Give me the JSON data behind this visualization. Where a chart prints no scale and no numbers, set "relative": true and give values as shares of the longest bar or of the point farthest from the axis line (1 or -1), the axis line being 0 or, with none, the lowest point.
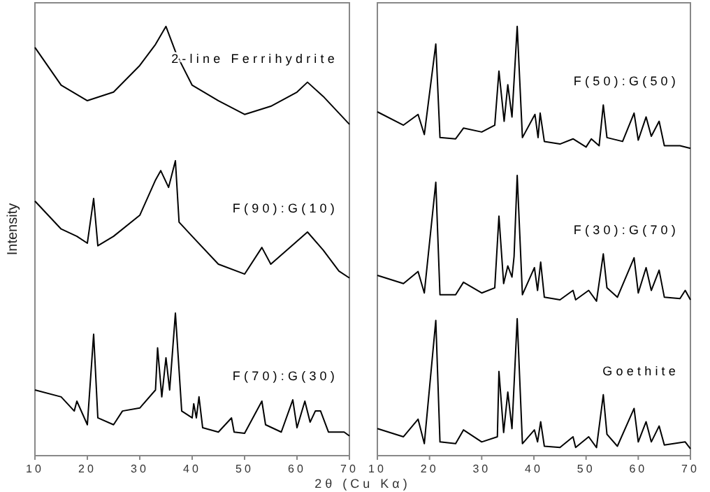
{
  "chart_data": [
    {
      "type": "line",
      "relative": true,
      "ylabel": "Intensity",
      "xlabel": "2θ (Cu Kα)",
      "xlim": [
        10,
        70
      ],
      "xticks": [
        10,
        20,
        30,
        40,
        50,
        60,
        70
      ],
      "tick_labels": "x",
      "series": [
        {
          "name": "2-line Ferrihydrite",
          "color": "#000000",
          "x": [
            10,
            15,
            20,
            25,
            30,
            33,
            35,
            37,
            40,
            45,
            50,
            55,
            60,
            62,
            65,
            70
          ],
          "values": [
            0.951,
            0.863,
            0.827,
            0.847,
            0.909,
            0.958,
            1.0,
            0.935,
            0.863,
            0.827,
            0.795,
            0.814,
            0.847,
            0.87,
            0.837,
            0.772
          ]
        },
        {
          "name": "F(90):G(10)",
          "color": "#000000",
          "x": [
            10,
            15,
            18,
            20,
            21.2,
            22,
            25,
            30,
            33,
            34,
            35.5,
            36.8,
            37.5,
            40,
            45,
            50,
            53.3,
            55,
            59,
            62,
            65,
            68,
            70
          ],
          "values": [
            0.593,
            0.528,
            0.511,
            0.495,
            0.599,
            0.489,
            0.511,
            0.56,
            0.642,
            0.664,
            0.625,
            0.687,
            0.544,
            0.511,
            0.446,
            0.423,
            0.485,
            0.446,
            0.489,
            0.521,
            0.479,
            0.43,
            0.414
          ]
        },
        {
          "name": "F(70):G(30)",
          "color": "#000000",
          "x": [
            10,
            15,
            17.5,
            18,
            20,
            21.2,
            22,
            25,
            26.7,
            30,
            33,
            33.4,
            34.2,
            35,
            35.7,
            36.8,
            38,
            40,
            40.3,
            40.8,
            41.3,
            42,
            45,
            47.5,
            48,
            50,
            53.3,
            54,
            57,
            59.2,
            60,
            61.5,
            62.5,
            63.5,
            64.5,
            66,
            69,
            70
          ],
          "values": [
            0.153,
            0.137,
            0.104,
            0.127,
            0.072,
            0.283,
            0.088,
            0.072,
            0.104,
            0.111,
            0.153,
            0.251,
            0.137,
            0.228,
            0.153,
            0.332,
            0.104,
            0.088,
            0.121,
            0.088,
            0.137,
            0.065,
            0.055,
            0.088,
            0.055,
            0.052,
            0.127,
            0.072,
            0.055,
            0.13,
            0.065,
            0.127,
            0.078,
            0.104,
            0.104,
            0.055,
            0.055,
            0.046
          ]
        }
      ]
    },
    {
      "type": "line",
      "relative": true,
      "xlim": [
        10,
        70
      ],
      "xticks": [
        10,
        20,
        30,
        40,
        50,
        60,
        70
      ],
      "tick_labels": "x",
      "series": [
        {
          "name": "F(50):G(50)",
          "color": "#000000",
          "x": [
            10,
            15,
            17.8,
            19,
            21.2,
            22,
            25,
            26.5,
            30,
            32.5,
            33.3,
            34.3,
            35,
            35.8,
            36.8,
            37.8,
            40.2,
            40.8,
            41.2,
            42,
            45,
            47.5,
            50,
            51,
            52.5,
            53.3,
            54,
            57,
            59.2,
            60,
            61.5,
            62.5,
            64,
            65,
            68,
            70
          ],
          "values": [
            0.801,
            0.77,
            0.795,
            0.748,
            0.959,
            0.741,
            0.738,
            0.763,
            0.754,
            0.77,
            0.896,
            0.779,
            0.864,
            0.789,
            1.0,
            0.741,
            0.795,
            0.741,
            0.798,
            0.732,
            0.726,
            0.738,
            0.719,
            0.738,
            0.722,
            0.817,
            0.741,
            0.732,
            0.798,
            0.735,
            0.789,
            0.744,
            0.779,
            0.722,
            0.722,
            0.716
          ]
        },
        {
          "name": "F(30):G(70)",
          "color": "#000000",
          "x": [
            10,
            15,
            17.8,
            19,
            21.2,
            22,
            25,
            26.5,
            30,
            32.5,
            33.3,
            34.2,
            35,
            35.8,
            36.2,
            36.8,
            37.8,
            40.1,
            40.7,
            41.3,
            42,
            45,
            47.5,
            48,
            50.5,
            52,
            53.3,
            54,
            56,
            59.2,
            60,
            61.5,
            62.5,
            64,
            65,
            68,
            69,
            70
          ],
          "values": [
            0.42,
            0.401,
            0.429,
            0.379,
            0.637,
            0.375,
            0.375,
            0.404,
            0.379,
            0.391,
            0.558,
            0.401,
            0.442,
            0.416,
            0.464,
            0.653,
            0.375,
            0.438,
            0.385,
            0.451,
            0.369,
            0.363,
            0.385,
            0.363,
            0.385,
            0.36,
            0.47,
            0.391,
            0.369,
            0.461,
            0.379,
            0.438,
            0.385,
            0.432,
            0.369,
            0.366,
            0.385,
            0.363
          ]
        },
        {
          "name": "Goethite",
          "color": "#000000",
          "x": [
            10,
            15,
            17.8,
            19,
            21.2,
            22,
            25,
            26.5,
            30,
            33,
            33.3,
            34.2,
            35,
            35.8,
            36.8,
            37.8,
            40.1,
            40.7,
            41.3,
            42,
            45,
            47.5,
            48,
            50.5,
            52,
            53.3,
            54,
            56,
            59.2,
            60,
            61.5,
            62.5,
            64,
            65,
            69,
            70
          ],
          "values": [
            0.063,
            0.044,
            0.085,
            0.028,
            0.315,
            0.032,
            0.028,
            0.06,
            0.032,
            0.044,
            0.196,
            0.054,
            0.148,
            0.063,
            0.319,
            0.028,
            0.06,
            0.032,
            0.079,
            0.022,
            0.019,
            0.044,
            0.019,
            0.044,
            0.019,
            0.142,
            0.05,
            0.022,
            0.11,
            0.032,
            0.079,
            0.032,
            0.069,
            0.025,
            0.032,
            0.016
          ]
        }
      ]
    }
  ]
}
